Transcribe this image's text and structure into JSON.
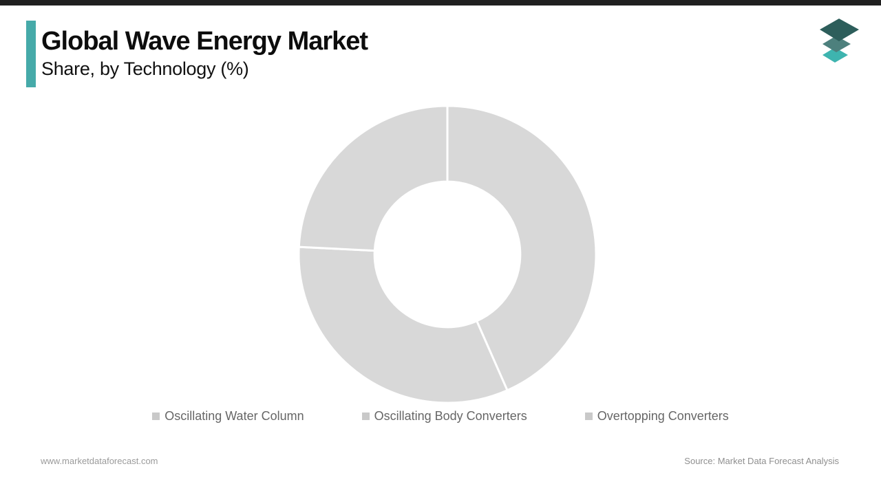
{
  "chrome": {
    "top_bar_color": "#202020"
  },
  "header": {
    "title": "Global Wave Energy Market",
    "subtitle": "Share, by Technology (%)",
    "accent_color": "#46aaa9"
  },
  "logo": {
    "name": "market-data-forecast-logo",
    "layer_colors": [
      "#2d5e5b",
      "#4d807d",
      "#3eb4af"
    ]
  },
  "chart_data": {
    "type": "pie",
    "donut": true,
    "title": "Global Wave Energy Market Share, by Technology (%)",
    "categories": [
      "Oscillating Water Column",
      "Oscillating Body Converters",
      "Overtopping Converters"
    ],
    "values": [
      43.4,
      32.4,
      24.2
    ],
    "unit": "%",
    "start_angle_deg": 0,
    "direction": "clockwise",
    "inner_radius_ratio": 0.49,
    "slice_color": "#d8d8d8",
    "divider_color": "#ffffff",
    "legend_position": "bottom",
    "data_labels_visible": false
  },
  "legend": {
    "items": [
      {
        "label": "Oscillating Water Column",
        "marker_color": "#c9c9c9"
      },
      {
        "label": "Oscillating Body Converters",
        "marker_color": "#c9c9c9"
      },
      {
        "label": "Overtopping Converters",
        "marker_color": "#c9c9c9"
      }
    ]
  },
  "footer": {
    "website": "www.marketdataforecast.com",
    "source": "Source: Market Data Forecast Analysis"
  }
}
